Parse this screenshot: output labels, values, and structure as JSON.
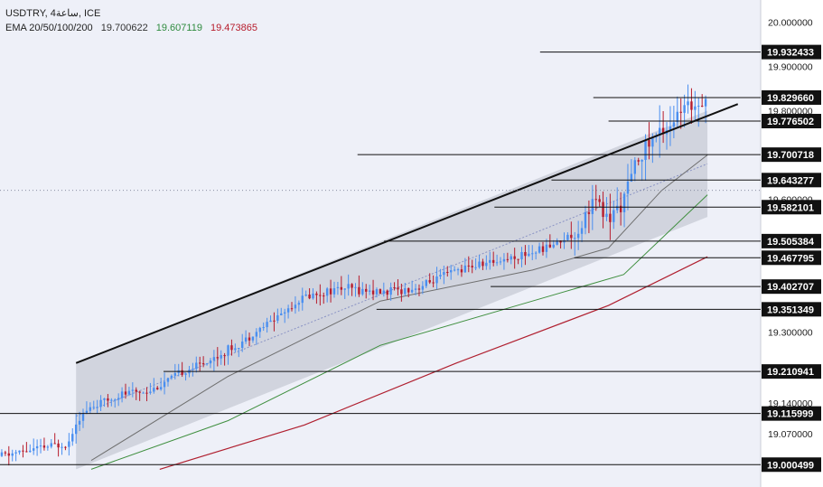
{
  "header": {
    "symbol_line": "USDTRY, 4ساعة, ICE",
    "ema_label": "EMA 20/50/100/200",
    "ema_values": [
      "19.700622",
      "19.607119",
      "19.473865"
    ]
  },
  "colors": {
    "background": "#eef0f8",
    "axis_bg": "#ffffff",
    "bull": "#4a8ff0",
    "bear": "#b71c2c",
    "ema_gray": "#6f6f6f",
    "ema_green": "#3f8f3f",
    "ema_red": "#b02030",
    "channel_fill": "#c7cbd6",
    "trend_line": "#111111",
    "level_line": "#111111",
    "label_bg": "#111111"
  },
  "chart_data": {
    "type": "candlestick",
    "instrument": "USDTRY",
    "ylim": [
      18.95,
      20.05
    ],
    "y_ticks": [
      "20.000000",
      "19.900000",
      "19.800000",
      "19.600000",
      "19.300000",
      "19.140000",
      "19.070000"
    ],
    "levels": [
      {
        "value": 19.932433,
        "label": "19.932433",
        "x_start": 0.71
      },
      {
        "value": 19.82966,
        "label": "19.829660",
        "x_start": 0.78
      },
      {
        "value": 19.776502,
        "label": "19.776502",
        "x_start": 0.8
      },
      {
        "value": 19.700718,
        "label": "19.700718",
        "x_start": 0.47
      },
      {
        "value": 19.643277,
        "label": "19.643277",
        "x_start": 0.725
      },
      {
        "value": 19.582101,
        "label": "19.582101",
        "x_start": 0.65
      },
      {
        "value": 19.505384,
        "label": "19.505384",
        "x_start": 0.505
      },
      {
        "value": 19.467795,
        "label": "19.467795",
        "x_start": 0.755
      },
      {
        "value": 19.402707,
        "label": "19.402707",
        "x_start": 0.645
      },
      {
        "value": 19.351349,
        "label": "19.351349",
        "x_start": 0.495
      },
      {
        "value": 19.210941,
        "label": "19.210941",
        "x_start": 0.215
      },
      {
        "value": 19.115999,
        "label": "19.115999",
        "x_start": 0.0
      },
      {
        "value": 19.000499,
        "label": "19.000499",
        "x_start": 0.0
      }
    ],
    "price_path": [
      [
        0,
        19.02
      ],
      [
        0.09,
        19.05
      ],
      [
        0.1,
        19.1
      ],
      [
        0.12,
        19.13
      ],
      [
        0.16,
        19.16
      ],
      [
        0.2,
        19.17
      ],
      [
        0.24,
        19.21
      ],
      [
        0.28,
        19.24
      ],
      [
        0.32,
        19.28
      ],
      [
        0.36,
        19.33
      ],
      [
        0.4,
        19.38
      ],
      [
        0.45,
        19.4
      ],
      [
        0.5,
        19.39
      ],
      [
        0.55,
        19.4
      ],
      [
        0.6,
        19.44
      ],
      [
        0.65,
        19.46
      ],
      [
        0.7,
        19.48
      ],
      [
        0.73,
        19.5
      ],
      [
        0.76,
        19.53
      ],
      [
        0.78,
        19.6
      ],
      [
        0.8,
        19.55
      ],
      [
        0.82,
        19.6
      ],
      [
        0.84,
        19.7
      ],
      [
        0.86,
        19.74
      ],
      [
        0.88,
        19.77
      ],
      [
        0.9,
        19.8
      ],
      [
        0.925,
        19.83
      ]
    ],
    "channel": {
      "upper": [
        [
          0.1,
          19.23
        ],
        [
          0.93,
          19.8
        ]
      ],
      "lower": [
        [
          0.1,
          18.99
        ],
        [
          0.93,
          19.56
        ]
      ]
    },
    "ema_gray": [
      [
        0.12,
        19.01
      ],
      [
        0.3,
        19.2
      ],
      [
        0.5,
        19.37
      ],
      [
        0.7,
        19.44
      ],
      [
        0.8,
        19.49
      ],
      [
        0.87,
        19.62
      ],
      [
        0.93,
        19.7
      ]
    ],
    "ema_green": [
      [
        0.12,
        18.99
      ],
      [
        0.3,
        19.1
      ],
      [
        0.5,
        19.27
      ],
      [
        0.7,
        19.37
      ],
      [
        0.82,
        19.43
      ],
      [
        0.93,
        19.61
      ]
    ],
    "ema_red": [
      [
        0.21,
        18.99
      ],
      [
        0.4,
        19.09
      ],
      [
        0.6,
        19.23
      ],
      [
        0.8,
        19.36
      ],
      [
        0.93,
        19.47
      ]
    ]
  }
}
